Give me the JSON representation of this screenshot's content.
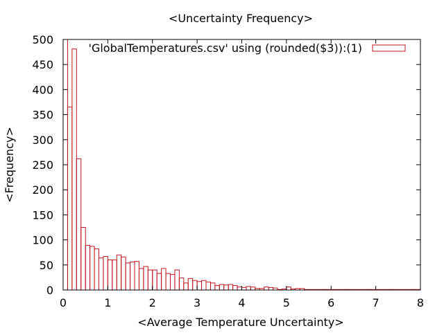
{
  "chart_data": {
    "type": "bar",
    "title": "<Uncertainty Frequency>",
    "xlabel": "<Average Temperature Uncertainty>",
    "ylabel": "<Frequency>",
    "xlim": [
      0,
      8
    ],
    "ylim": [
      0,
      500
    ],
    "x_ticks": [
      "0",
      "1",
      "2",
      "3",
      "4",
      "5",
      "6",
      "7",
      "8"
    ],
    "y_ticks": [
      "0",
      "50",
      "100",
      "150",
      "200",
      "250",
      "300",
      "350",
      "400",
      "450",
      "500"
    ],
    "grid": false,
    "legend_position": "top-right",
    "bar_color": "#c0141e",
    "series": [
      {
        "name": "'GlobalTemperatures.csv' using (rounded($3)):(1)",
        "bin_width": 0.1,
        "x": [
          0.0,
          0.1,
          0.2,
          0.3,
          0.4,
          0.5,
          0.6,
          0.7,
          0.8,
          0.9,
          1.0,
          1.1,
          1.2,
          1.3,
          1.4,
          1.5,
          1.6,
          1.7,
          1.8,
          1.9,
          2.0,
          2.1,
          2.2,
          2.3,
          2.4,
          2.5,
          2.6,
          2.7,
          2.8,
          2.9,
          3.0,
          3.1,
          3.2,
          3.3,
          3.4,
          3.5,
          3.6,
          3.7,
          3.8,
          3.9,
          4.0,
          4.1,
          4.2,
          4.3,
          4.4,
          4.5,
          4.6,
          4.7,
          4.8,
          4.9,
          5.0,
          5.1,
          5.2,
          5.3,
          5.4,
          5.5,
          5.6,
          5.7,
          5.8,
          5.9,
          6.0,
          6.1,
          6.2,
          6.3,
          6.4,
          6.5,
          6.6,
          6.7,
          6.8,
          6.9,
          7.0,
          7.1,
          7.2,
          7.3,
          7.4,
          7.5,
          7.6,
          7.7,
          7.8,
          7.9
        ],
        "values": [
          500,
          365,
          481,
          262,
          125,
          89,
          87,
          82,
          64,
          67,
          60,
          60,
          70,
          66,
          54,
          56,
          57,
          43,
          47,
          40,
          40,
          33,
          43,
          33,
          31,
          40,
          24,
          14,
          23,
          19,
          17,
          19,
          16,
          14,
          9,
          11,
          10,
          11,
          9,
          6,
          5,
          7,
          6,
          3,
          3,
          6,
          5,
          4,
          1,
          2,
          6,
          2,
          3,
          3,
          1,
          1,
          1,
          1,
          1,
          1,
          1,
          1,
          1,
          1,
          1,
          1,
          1,
          1,
          1,
          1,
          1,
          1,
          1,
          1,
          1,
          1,
          1,
          1,
          1,
          1
        ]
      }
    ]
  }
}
